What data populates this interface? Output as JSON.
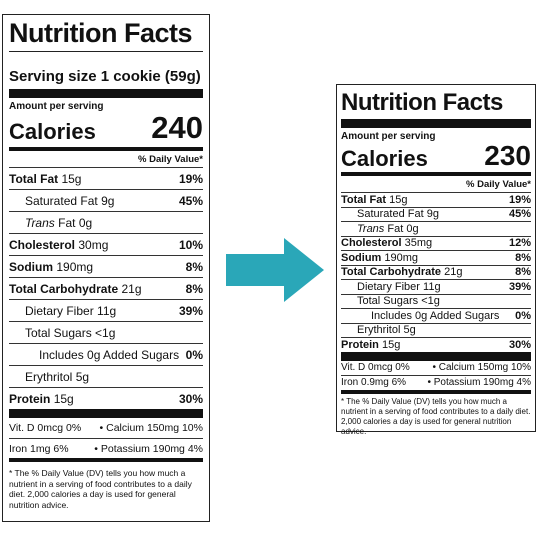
{
  "colors": {
    "arrow": "#2aa7b8"
  },
  "left_label": {
    "title": "Nutrition Facts",
    "serving": "Serving size 1 cookie (59g)",
    "amount_per_serving": "Amount per serving",
    "calories_label": "Calories",
    "calories_value": "240",
    "dv_header": "% Daily Value*",
    "rows": [
      {
        "label": "Total Fat",
        "amount": "15g",
        "pct": "19%"
      },
      {
        "label": "Saturated Fat",
        "amount": "9g",
        "pct": "45%"
      },
      {
        "label": "Trans",
        "amount": "Fat 0g",
        "pct": ""
      },
      {
        "label": "Cholesterol",
        "amount": "30mg",
        "pct": "10%"
      },
      {
        "label": "Sodium",
        "amount": "190mg",
        "pct": "8%"
      },
      {
        "label": "Total Carbohydrate",
        "amount": "21g",
        "pct": "8%"
      },
      {
        "label": "Dietary Fiber",
        "amount": "11g",
        "pct": "39%"
      },
      {
        "label": "Total Sugars",
        "amount": "<1g",
        "pct": ""
      },
      {
        "label": "Includes 0g Added Sugars",
        "amount": "",
        "pct": "0%"
      },
      {
        "label": "Erythritol",
        "amount": "5g",
        "pct": ""
      },
      {
        "label": "Protein",
        "amount": "15g",
        "pct": "30%"
      }
    ],
    "vit_row1_left": "Vit. D 0mcg 0%",
    "vit_row1_right": "•  Calcium 150mg 10%",
    "vit_row2_left": "Iron 1mg 6%",
    "vit_row2_right": "•  Potassium 190mg 4%",
    "footnote": "* The % Daily Value (DV) tells you how much a nutrient in a serving of food contributes to a daily diet. 2,000 calories a day is used for general nutrition advice."
  },
  "right_label": {
    "title": "Nutrition Facts",
    "amount_per_serving": "Amount per serving",
    "calories_label": "Calories",
    "calories_value": "230",
    "dv_header": "% Daily Value*",
    "rows": [
      {
        "label": "Total Fat",
        "amount": "15g",
        "pct": "19%"
      },
      {
        "label": "Saturated Fat",
        "amount": "9g",
        "pct": "45%"
      },
      {
        "label": "Trans",
        "amount": "Fat 0g",
        "pct": ""
      },
      {
        "label": "Cholesterol",
        "amount": "35mg",
        "pct": "12%"
      },
      {
        "label": "Sodium",
        "amount": "190mg",
        "pct": "8%"
      },
      {
        "label": "Total Carbohydrate",
        "amount": "21g",
        "pct": "8%"
      },
      {
        "label": "Dietary Fiber",
        "amount": "11g",
        "pct": "39%"
      },
      {
        "label": "Total Sugars",
        "amount": "<1g",
        "pct": ""
      },
      {
        "label": "Includes 0g Added Sugars",
        "amount": "",
        "pct": "0%"
      },
      {
        "label": "Erythritol",
        "amount": "5g",
        "pct": ""
      },
      {
        "label": "Protein",
        "amount": "15g",
        "pct": "30%"
      }
    ],
    "vit_row1_left": "Vit. D 0mcg 0%",
    "vit_row1_right": "•  Calcium 150mg 10%",
    "vit_row2_left": "Iron 0.9mg 6%",
    "vit_row2_right": "•  Potassium 190mg 4%",
    "footnote": "* The % Daily Value (DV) tells you how much a nutrient in a serving of food contributes to a daily diet. 2,000 calories a day is used for general nutrition advice."
  }
}
